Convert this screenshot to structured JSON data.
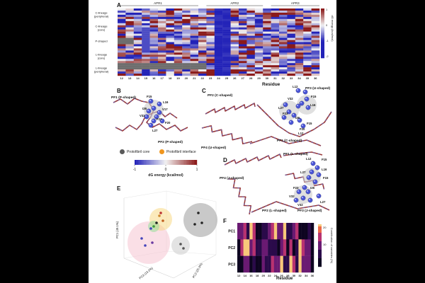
{
  "panels": {
    "a": "A",
    "b": "B",
    "c": "C",
    "d": "D",
    "e": "E",
    "f": "F"
  },
  "heatmap": {
    "region_labels": [
      "APR1",
      "APR2",
      "APR3"
    ],
    "row_groups": [
      "C-lineage\n(peripheral)",
      "C-lineage\n(core)",
      "P-shaped",
      "L-lineage\n(core)",
      "L-lineage\n(peripheral)"
    ],
    "row_count": 32,
    "residues": [
      "12",
      "13",
      "14",
      "15",
      "16",
      "17",
      "18",
      "19",
      "20",
      "21",
      "22",
      "23",
      "24",
      "25",
      "26",
      "27",
      "28",
      "29",
      "30",
      "31",
      "32",
      "33",
      "34",
      "35",
      "36"
    ],
    "colorbar_title": "dG energy (kcal/mol)",
    "colorbar_ticks": [
      "1",
      "0",
      "-1",
      "-2"
    ],
    "xlabel": "Residue",
    "colors": {
      "negative": "#2323b8",
      "neutral": "#f2f2f2",
      "positive": "#8b1a1a",
      "missing": "#6e6e6e"
    }
  },
  "structures": {
    "b_labels": [
      "PF1 (P-shaped)",
      "PF2 (P-shaped)",
      "F15",
      "L16",
      "I26",
      "V17",
      "F23",
      "V32",
      "F20",
      "L27"
    ],
    "c_labels": [
      "PF2 (C-shaped)",
      "PF3 (U-shaped)",
      "PF4 (U-shaped)",
      "PF1 (C-shaped)",
      "L12",
      "F15",
      "L16",
      "V32",
      "L27",
      "F23",
      "I26",
      "F20",
      "F15",
      "L12"
    ],
    "d_labels": [
      "PF1 (L-shaped)",
      "PF4 (J-shaped)",
      "PF2 (L-shaped)",
      "PF3 (J-shaped)",
      "L12",
      "F15",
      "L16",
      "L27",
      "F15",
      "F23",
      "I26",
      "V32",
      "L27",
      "V32"
    ]
  },
  "legend": {
    "core_label": "Protofibril core",
    "interface_label": "Protofibril interface",
    "core_color": "#5a5a5a",
    "interface_color": "#f0961e",
    "energy_title": "dG energy (kcal/mol)",
    "energy_ticks": [
      "-1",
      "0",
      "1"
    ]
  },
  "pca": {
    "axis1": "PC1 (49.1%)",
    "axis2": "PC2 (25.3%)",
    "axis3": "PC3 (13.2%)"
  },
  "pc_heatmap": {
    "rows": [
      "PC1",
      "PC2",
      "PC3"
    ],
    "xlabel": "Residue",
    "ticks": [
      "12",
      "14",
      "16",
      "18",
      "20",
      "22",
      "24",
      "26",
      "28",
      "30",
      "32",
      "34",
      "36"
    ],
    "colorbar_title": "Contribution of variables (%)",
    "colorbar_ticks": [
      "20",
      "10"
    ]
  }
}
